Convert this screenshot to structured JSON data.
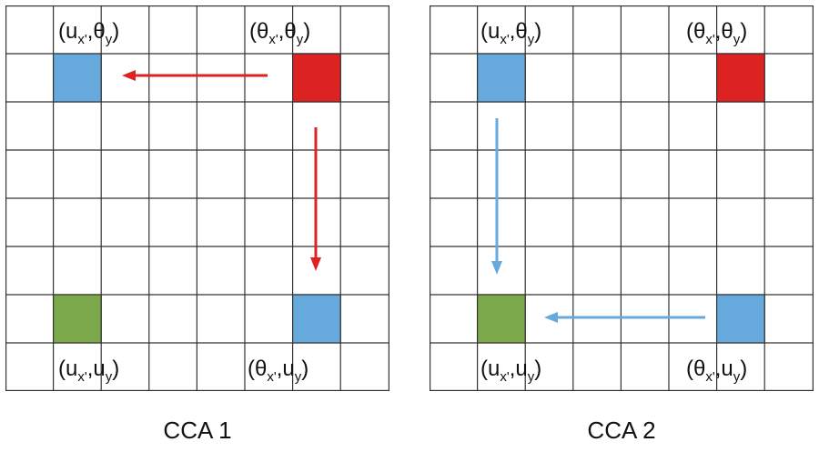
{
  "colors": {
    "red": "#dd2222",
    "blue": "#66aadd",
    "green": "#7aa84a",
    "grid": "#333333"
  },
  "panels": [
    {
      "title": "CCA 1",
      "labels": {
        "top_left": {
          "a": "u",
          "a_sub": "x'",
          "b": "θ",
          "b_sub": "y"
        },
        "top_right": {
          "a": "θ",
          "a_sub": "x'",
          "b": "θ",
          "b_sub": "y"
        },
        "bottom_left": {
          "a": "u",
          "a_sub": "x'",
          "b": "u",
          "b_sub": "y"
        },
        "bottom_right": {
          "a": "θ",
          "a_sub": "x'",
          "b": "u",
          "b_sub": "y"
        }
      },
      "cells": {
        "top_left": "blue",
        "top_right": "red",
        "bottom_left": "green",
        "bottom_right": "blue"
      },
      "arrow_color": "red"
    },
    {
      "title": "CCA 2",
      "labels": {
        "top_left": {
          "a": "u",
          "a_sub": "x'",
          "b": "θ",
          "b_sub": "y"
        },
        "top_right": {
          "a": "θ",
          "a_sub": "x'",
          "b": "θ",
          "b_sub": "y"
        },
        "bottom_left": {
          "a": "u",
          "a_sub": "x'",
          "b": "u",
          "b_sub": "y"
        },
        "bottom_right": {
          "a": "θ",
          "a_sub": "x'",
          "b": "u",
          "b_sub": "y"
        }
      },
      "cells": {
        "top_left": "blue",
        "top_right": "red",
        "bottom_left": "green",
        "bottom_right": "blue"
      },
      "arrow_color": "blue"
    }
  ]
}
